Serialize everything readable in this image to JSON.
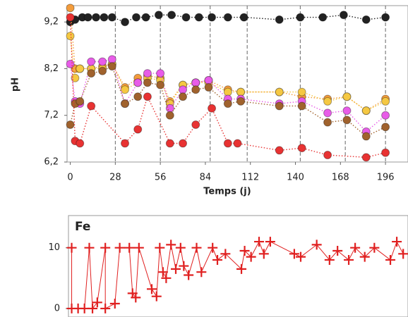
{
  "chart_data": [
    {
      "type": "line",
      "marker": "circle",
      "x_label": "Temps (j)",
      "y_label": "pH",
      "xlim": [
        -2,
        210
      ],
      "ylim": [
        6.2,
        9.55
      ],
      "xticks": [
        0,
        28,
        56,
        84,
        112,
        140,
        168,
        196
      ],
      "yticks": [
        {
          "value": 6.2,
          "label": "6,2"
        },
        {
          "value": 7.2,
          "label": "7,2"
        },
        {
          "value": 8.2,
          "label": "8,2"
        },
        {
          "value": 9.2,
          "label": "9,2"
        }
      ],
      "vlines": [
        28,
        56,
        87,
        110,
        143,
        171,
        196
      ],
      "series": [
        {
          "color": "#222222",
          "x": [
            0,
            3,
            7.5,
            11,
            16,
            21,
            26,
            34,
            41,
            47,
            55,
            63,
            72,
            80,
            88,
            98,
            108,
            130,
            143,
            157,
            170,
            184,
            196
          ],
          "values": [
            9.2,
            9.25,
            9.3,
            9.3,
            9.3,
            9.3,
            9.3,
            9.2,
            9.3,
            9.3,
            9.35,
            9.35,
            9.3,
            9.3,
            9.3,
            9.3,
            9.3,
            9.25,
            9.3,
            9.3,
            9.35,
            9.25,
            9.3
          ]
        },
        {
          "color": "#f39c3c",
          "x": [
            0,
            3,
            6,
            13,
            20,
            26,
            34,
            42,
            48,
            56,
            62,
            70,
            78,
            86,
            98,
            106,
            130,
            144,
            160,
            172,
            184,
            196
          ],
          "values": [
            9.5,
            8.2,
            8.2,
            8.2,
            8.25,
            8.3,
            7.8,
            8.0,
            8.05,
            8.0,
            7.5,
            7.85,
            7.9,
            7.95,
            7.75,
            7.7,
            7.7,
            7.6,
            7.55,
            7.6,
            7.3,
            7.55
          ]
        },
        {
          "color": "#f5c842",
          "x": [
            0,
            3,
            6,
            13,
            20,
            26,
            34,
            42,
            48,
            56,
            62,
            70,
            78,
            86,
            98,
            106,
            130,
            144,
            160,
            172,
            184,
            196
          ],
          "values": [
            8.9,
            8.0,
            8.2,
            8.2,
            8.2,
            8.3,
            7.75,
            7.9,
            8.0,
            7.95,
            7.45,
            7.85,
            7.9,
            7.9,
            7.7,
            7.7,
            7.7,
            7.7,
            7.5,
            7.6,
            7.3,
            7.5
          ]
        },
        {
          "color": "#e85ce8",
          "x": [
            0,
            3,
            6,
            13,
            20,
            26,
            34,
            42,
            48,
            56,
            62,
            70,
            78,
            86,
            98,
            106,
            130,
            144,
            160,
            172,
            184,
            196
          ],
          "values": [
            8.3,
            7.5,
            7.45,
            8.35,
            8.35,
            8.4,
            7.45,
            7.9,
            8.1,
            8.1,
            7.35,
            7.75,
            7.9,
            7.95,
            7.55,
            7.55,
            7.45,
            7.5,
            7.25,
            7.3,
            6.85,
            7.2
          ]
        },
        {
          "color": "#a0622d",
          "x": [
            0,
            3,
            6,
            13,
            20,
            26,
            34,
            42,
            48,
            56,
            62,
            70,
            78,
            86,
            98,
            106,
            130,
            144,
            160,
            172,
            184,
            196
          ],
          "values": [
            7.0,
            7.45,
            7.5,
            8.1,
            8.15,
            8.25,
            7.45,
            7.6,
            7.9,
            7.85,
            7.2,
            7.6,
            7.75,
            7.8,
            7.45,
            7.5,
            7.4,
            7.4,
            7.05,
            7.1,
            6.75,
            6.95
          ]
        },
        {
          "color": "#e83232",
          "x": [
            0,
            3,
            6,
            13,
            34,
            42,
            48,
            62,
            70,
            78,
            88,
            98,
            104,
            130,
            144,
            160,
            184,
            196
          ],
          "values": [
            9.3,
            6.65,
            6.6,
            7.4,
            6.6,
            6.9,
            7.6,
            6.6,
            6.6,
            7.0,
            7.35,
            6.6,
            6.6,
            6.45,
            6.5,
            6.35,
            6.3,
            6.4
          ]
        }
      ]
    },
    {
      "type": "line",
      "marker": "plus",
      "title": "Fe",
      "xlim": [
        -2,
        210
      ],
      "ylim": [
        -1.4,
        15.3
      ],
      "yticks": [
        0,
        10
      ],
      "series": [
        {
          "color": "#e02020",
          "x": [
            0,
            0,
            4,
            8,
            11,
            13,
            16,
            21,
            21,
            27,
            30,
            36,
            38,
            40,
            42,
            50,
            53,
            55,
            57,
            59,
            62,
            65,
            68,
            70,
            73,
            78,
            81,
            88,
            91,
            96,
            106,
            108,
            112,
            117,
            120,
            124,
            139,
            143,
            153,
            161,
            166,
            173,
            177,
            183,
            189,
            199,
            203,
            207
          ],
          "values": [
            10,
            0,
            0,
            0,
            10,
            0,
            1,
            10,
            0,
            0.8,
            10,
            10,
            2.5,
            1.8,
            10,
            3.2,
            2,
            10,
            6,
            5,
            10.5,
            6.5,
            10,
            7,
            5.5,
            10,
            6,
            10,
            8,
            9,
            6.5,
            9.5,
            8.5,
            11,
            9,
            11,
            9,
            8.5,
            10.5,
            8,
            9.5,
            8,
            10,
            8.5,
            10,
            8,
            11,
            9
          ]
        }
      ]
    }
  ]
}
